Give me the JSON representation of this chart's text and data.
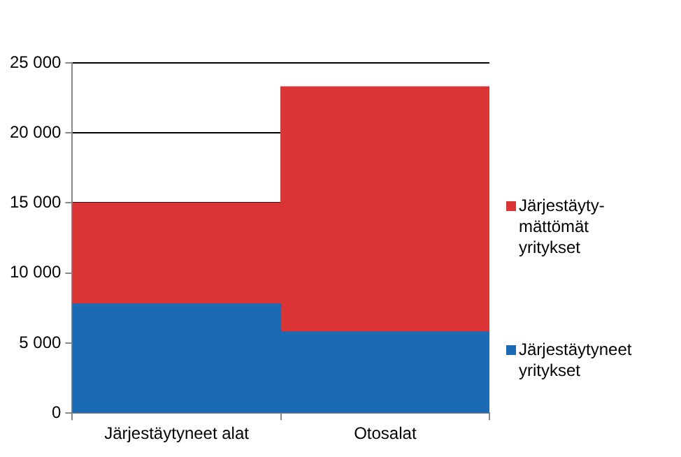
{
  "chart_data": {
    "type": "bar",
    "stacked": true,
    "categories": [
      "Järjestäytyneet alat",
      "Otosalat"
    ],
    "series": [
      {
        "name": "Järjestäytyneet yritykset",
        "color": "#1a6ab4",
        "values": [
          7800,
          5800
        ]
      },
      {
        "name": "Järjestäyty-mättömät yritykset",
        "color": "#da3434",
        "values": [
          7200,
          17500
        ]
      }
    ],
    "ylim": [
      0,
      25000
    ],
    "yticks": [
      {
        "value": 0,
        "label": "0"
      },
      {
        "value": 5000,
        "label": "5 000"
      },
      {
        "value": 10000,
        "label": "10 000"
      },
      {
        "value": 15000,
        "label": "15 000"
      },
      {
        "value": 20000,
        "label": "20 000"
      },
      {
        "value": 25000,
        "label": "25 000"
      }
    ],
    "grid": "y",
    "legend": "right"
  }
}
